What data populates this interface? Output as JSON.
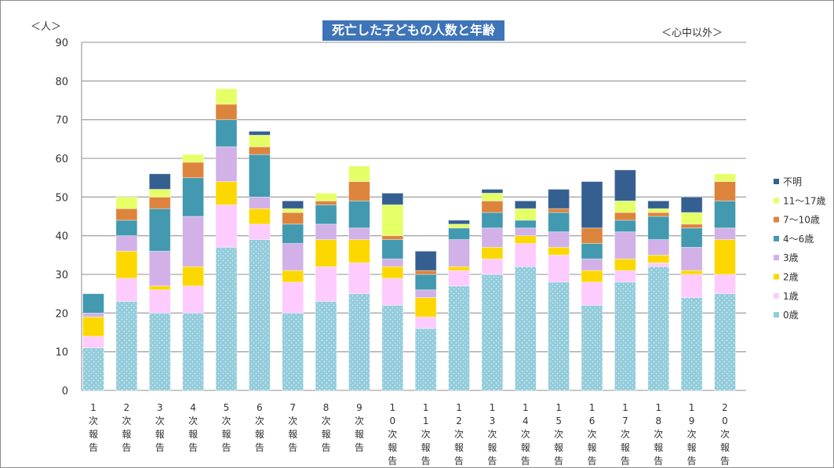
{
  "chart_data": {
    "type": "bar",
    "stacked": true,
    "title": "死亡した子どもの人数と年齢",
    "ylabel": "＜人＞",
    "note": "＜心中以外＞",
    "ylim": [
      0,
      90
    ],
    "yticks": [
      0,
      10,
      20,
      30,
      40,
      50,
      60,
      70,
      80,
      90
    ],
    "grid": true,
    "legend_position": "right",
    "categories": [
      "1次報告",
      "2次報告",
      "3次報告",
      "4次報告",
      "5次報告",
      "6次報告",
      "7次報告",
      "8次報告",
      "9次報告",
      "10次報告",
      "11次報告",
      "12次報告",
      "13次報告",
      "14次報告",
      "15次報告",
      "16次報告",
      "17次報告",
      "18次報告",
      "19次報告",
      "20次報告"
    ],
    "series": [
      {
        "name": "0歳",
        "color": "#93ccdc",
        "values": [
          11,
          23,
          20,
          20,
          37,
          39,
          20,
          23,
          25,
          22,
          16,
          27,
          30,
          32,
          28,
          22,
          28,
          32,
          24,
          25
        ]
      },
      {
        "name": "1歳",
        "color": "#fdcbfd",
        "values": [
          3,
          6,
          6,
          7,
          11,
          4,
          8,
          9,
          8,
          7,
          3,
          4,
          4,
          6,
          7,
          6,
          3,
          1,
          6,
          5
        ]
      },
      {
        "name": "2歳",
        "color": "#fdd800",
        "values": [
          5,
          7,
          1,
          5,
          6,
          4,
          3,
          7,
          6,
          3,
          5,
          1,
          3,
          2,
          2,
          3,
          3,
          2,
          1,
          9
        ]
      },
      {
        "name": "3歳",
        "color": "#d1b1e7",
        "values": [
          1,
          4,
          9,
          13,
          9,
          3,
          7,
          4,
          3,
          2,
          2,
          7,
          5,
          2,
          4,
          3,
          7,
          4,
          6,
          3
        ]
      },
      {
        "name": "4〜6歳",
        "color": "#4299b0",
        "values": [
          5,
          4,
          11,
          10,
          7,
          11,
          5,
          5,
          7,
          5,
          4,
          3,
          4,
          2,
          5,
          4,
          3,
          6,
          5,
          7
        ]
      },
      {
        "name": "7〜10歳",
        "color": "#dd843c",
        "values": [
          0,
          3,
          3,
          4,
          4,
          2,
          3,
          1,
          5,
          1,
          1,
          0,
          3,
          0,
          1,
          4,
          2,
          1,
          1,
          5
        ]
      },
      {
        "name": "11〜17歳",
        "color": "#e5ff66",
        "values": [
          0,
          3,
          2,
          2,
          4,
          3,
          1,
          2,
          4,
          8,
          0,
          1,
          2,
          3,
          0,
          0,
          3,
          1,
          3,
          2
        ]
      },
      {
        "name": "不明",
        "color": "#355f91",
        "values": [
          0,
          0,
          4,
          0,
          0,
          1,
          2,
          0,
          0,
          3,
          5,
          1,
          1,
          2,
          5,
          12,
          8,
          2,
          4,
          0
        ]
      }
    ]
  }
}
